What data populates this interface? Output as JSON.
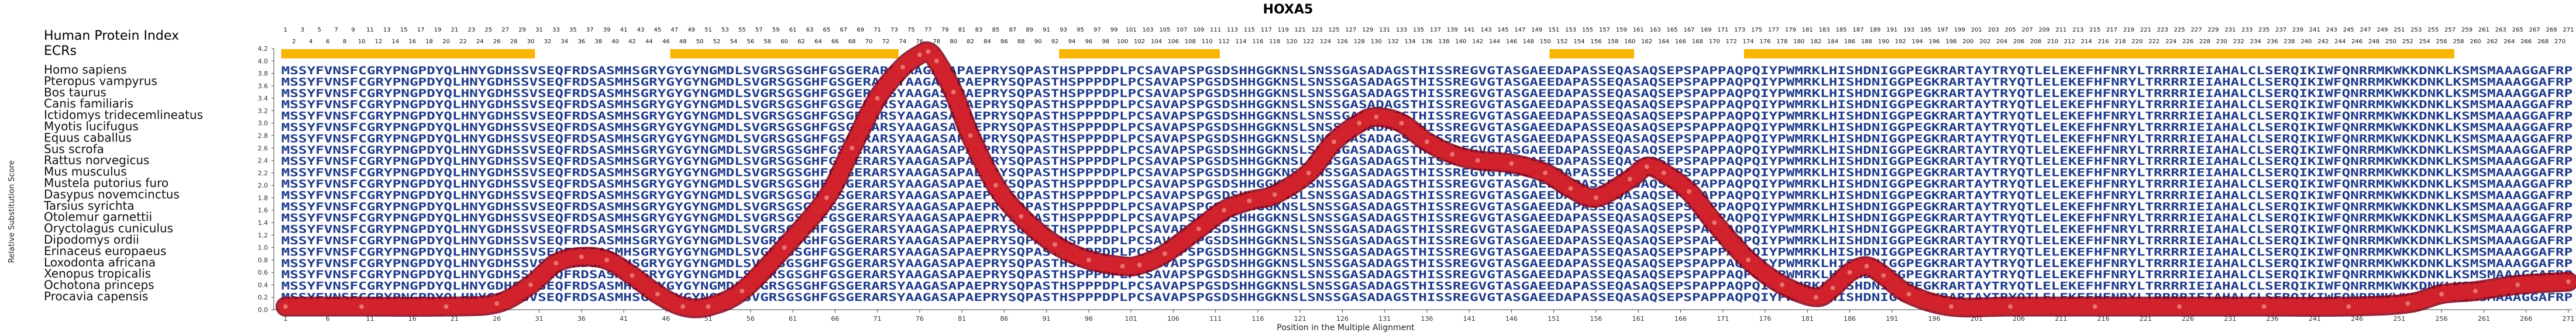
{
  "title": "HOXA5",
  "xlabel": "Position in the Multiple Alignment",
  "ylabel": "Relative Substitution Score",
  "header_labels": {
    "human_protein_index": "Human Protein Index",
    "ecrs": "ECRs"
  },
  "colors": {
    "ecr_bar": "#f7b500",
    "residue_text": "#1f3b8c",
    "curve_fill": "#d8242c",
    "curve_edge": "#8a0018",
    "axis": "#444444"
  },
  "species": [
    "Homo sapiens",
    "Pteropus vampyrus",
    "Bos taurus",
    "Canis familiaris",
    "Ictidomys tridecemlineatus",
    "Myotis lucifugus",
    "Equus caballus",
    "Sus scrofa",
    "Rattus norvegicus",
    "Mus musculus",
    "Mustela putorius furo",
    "Dasypus novemcinctus",
    "Tarsius syrichta",
    "Otolemur garnettii",
    "Oryctolagus cuniculus",
    "Dipodomys ordii",
    "Erinaceus europaeus",
    "Loxodonta africana",
    "Xenopus tropicalis",
    "Ochotona princeps",
    "Procavia capensis"
  ],
  "alignment": [
    "MSSYFVNSFCGRYPNGPDYQLHNYGDHSSVSEQFRDSASMHSGRYGYGYNGMDLSVGRSGSGHFGSGERARSYAAGASAPAEPRYSQPASTHSPPPDPLPCSAVAPSPGSDSHHGGKNSLSNSSGASADAGSTHISSREGVGTASGAEEDAPASSEQASAQSEPSPAPPAQPQIYPWMRKLHISHDNIGGPEGKRARTAYTRYQTLELEKEFHFNRYLTRRRRIEIAHALCLSERQIKIWFQNRRMKWKKDNKLKSMSMAAAGGAFRP",
    "MSSYFVNSFCGRYPNGPDYQLHNYGDHSSVSEQFRDSASMHSGRYGYGYNGMDLSVGRSGSGHFGSGERARSYAAGASAPAEPRYSQPASTHSPPPDPLPCSAVAPSPGSDSHHGGKNSLSNSSGASADAGSTHISSREGVGTASGAEEDAPASSEQASAQSEPSPAPPAQPQIYPWMRKLHISHDNIGGPEGKRARTAYTRYQTLELEKEFHFNRYLTRRRRIEIAHALCLSERQIKIWFQNRRMKWKKDNKLKSMSMAAAGGAFRP",
    "MSSYFVNSFCGRYPNGPDYQLHNYGDHSSVSEQFRDSASMHSGRYGYGYNGMDLSVGRSGSGHFGSGERARSYAAGASAPAEPRYSQPASTHSPPPDPLPCSAVAPSPGSDSHHGGKNSLSNSSGASADAGSTHISSREGVGTASGAEEDAPASSEQASAQSEPSPAPPAQPQIYPWMRKLHISHDNIGGPEGKRARTAYTRYQTLELEKEFHFNRYLTRRRRIEIAHALCLSERQIKIWFQNRRMKWKKDNKLKSMSMAAAGGAFRP",
    "MSSYFVNSFCGRYPNGPDYQLHNYGDHSSVSEQFRDSASMHSGRYGYGYNGMDLSVGRSGSGHFGSGERARSYAAGASAPAEPRYSQPASTHSPPPDPLPCSAVAPSPGSDSHHGGKNSLSNSSGASADAGSTHISSREGVGTASGAEEDAPASSEQASAQSEPSPAPPAQPQIYPWMRKLHISHDNIGGPEGKRARTAYTRYQTLELEKEFHFNRYLTRRRRIEIAHALCLSERQIKIWFQNRRMKWKKDNKLKSMSMAAAGGAFRP",
    "MSSYFVNSFCGRYPNGPDYQLHNYGDHSSVSEQFRDSASMHSGRYGYGYNGMDLSVGRSGSGHFGSGERARSYAAGASAPAEPRYSQPASTHSPPPDPLPCSAVAPSPGSDSHHGGKNSLSNSSGASADAGSTHISSREGVGTASGAEEDAPASSEQASAQSEPSPAPPAQPQIYPWMRKLHISHDNIGGPEGKRARTAYTRYQTLELEKEFHFNRYLTRRRRIEIAHALCLSERQIKIWFQNRRMKWKKDNKLKSMSMAAAGGAFRP",
    "MSSYFVNSFCGRYPNGPDYQLHNYGDHSSVSEQFRDSASMHSGRYGYGYNGMDLSVGRSGSGHFGSGERARSYAAGASAPAEPRYSQPASTHSPPPDPLPCSAVAPSPGSDSHHGGKNSLSNSSGASADAGSTHISSREGVGTASGAEEDAPASSEQASAQSEPSPAPPAQPQIYPWMRKLHISHDNIGGPEGKRARTAYTRYQTLELEKEFHFNRYLTRRRRIEIAHALCLSERQIKIWFQNRRMKWKKDNKLKSMSMAAAGGAFRP",
    "MSSYFVNSFCGRYPNGPDYQLHNYGDHSSVSEQFRDSASMHSGRYGYGYNGMDLSVGRSGSGHFGSGERARSYAAGASAPAEPRYSQPASTHSPPPDPLPCSAVAPSPGSDSHHGGKNSLSNSSGASADAGSTHISSREGVGTASGAEEDAPASSEQASAQSEPSPAPPAQPQIYPWMRKLHISHDNIGGPEGKRARTAYTRYQTLELEKEFHFNRYLTRRRRIEIAHALCLSERQIKIWFQNRRMKWKKDNKLKSMSMAAAGGAFRP",
    "MSSYFVNSFCGRYPNGPDYQLHNYGDHSSVSEQFRDSASMHSGRYGYGYNGMDLSVGRSGSGHFGSGERARSYAAGASAPAEPRYSQPASTHSPPPDPLPCSAVAPSPGSDSHHGGKNSLSNSSGASADAGSTHISSREGVGTASGAEEDAPASSEQASAQSEPSPAPPAQPQIYPWMRKLHISHDNIGGPEGKRARTAYTRYQTLELEKEFHFNRYLTRRRRIEIAHALCLSERQIKIWFQNRRMKWKKDNKLKSMSMAAAGGAFRP",
    "MSSYFVNSFCGRYPNGPDYQLHNYGDHSSVSEQFRDSASMHSGRYGYGYNGMDLSVGRSGSGHFGSGERARSYAAGASAPAEPRYSQPASTHSPPPDPLPCSAVAPSPGSDSHHGGKNSLSNSSGASADAGSTHISSREGVGTASGAEEDAPASSEQASAQSEPSPAPPAQPQIYPWMRKLHISHDNIGGPEGKRARTAYTRYQTLELEKEFHFNRYLTRRRRIEIAHALCLSERQIKIWFQNRRMKWKKDNKLKSMSMAAAGGAFRP",
    "MSSYFVNSFCGRYPNGPDYQLHNYGDHSSVSEQFRDSASMHSGRYGYGYNGMDLSVGRSGSGHFGSGERARSYAAGASAPAEPRYSQPASTHSPPPDPLPCSAVAPSPGSDSHHGGKNSLSNSSGASADAGSTHISSREGVGTASGAEEDAPASSEQASAQSEPSPAPPAQPQIYPWMRKLHISHDNIGGPEGKRARTAYTRYQTLELEKEFHFNRYLTRRRRIEIAHALCLSERQIKIWFQNRRMKWKKDNKLKSMSMAAAGGAFRP",
    "MSSYFVNSFCGRYPNGPDYQLHNYGDHSSVSEQFRDSASMHSGRYGYGYNGMDLSVGRSGSGHFGSGERARSYAAGASAPAEPRYSQPASTHSPPPDPLPCSAVAPSPGSDSHHGGKNSLSNSSGASADAGSTHISSREGVGTASGAEEDAPASSEQASAQSEPSPAPPAQPQIYPWMRKLHISHDNIGGPEGKRARTAYTRYQTLELEKEFHFNRYLTRRRRIEIAHALCLSERQIKIWFQNRRMKWKKDNKLKSMSMAAAGGAFRP",
    "MSSYFVNSFCGRYPNGPDYQLHNYGDHSSVSEQFRDSASMHSGRYGYGYNGMDLSVGRSGSGHFGSGERARSYAAGASAPAEPRYSQPASTHSPPPDPLPCSAVAPSPGSDSHHGGKNSLSNSSGASADAGSTHISSREGVGTASGAEEDAPASSEQASAQSEPSPAPPAQPQIYPWMRKLHISHDNIGGPEGKRARTAYTRYQTLELEKEFHFNRYLTRRRRIEIAHALCLSERQIKIWFQNRRMKWKKDNKLKSMSMAAAGGAFRP",
    "MSSYFVNSFCGRYPNGPDYQLHNYGDHSSVSEQFRDSASMHSGRYGYGYNGMDLSVGRSGSGHFGSGERARSYAAGASAPAEPRYSQPASTHSPPPDPLPCSAVAPSPGSDSHHGGKNSLSNSSGASADAGSTHISSREGVGTASGAEEDAPASSEQASAQSEPSPAPPAQPQIYPWMRKLHISHDNIGGPEGKRARTAYTRYQTLELEKEFHFNRYLTRRRRIEIAHALCLSERQIKIWFQNRRMKWKKDNKLKSMSMAAAGGAFRP",
    "MSSYFVNSFCGRYPNGPDYQLHNYGDHSSVSEQFRDSASMHSGRYGYGYNGMDLSVGRSGSGHFGSGERARSYAAGASAPAEPRYSQPASTHSPPPDPLPCSAVAPSPGSDSHHGGKNSLSNSSGASADAGSTHISSREGVGTASGAEEDAPASSEQASAQSEPSPAPPAQPQIYPWMRKLHISHDNIGGPEGKRARTAYTRYQTLELEKEFHFNRYLTRRRRIEIAHALCLSERQIKIWFQNRRMKWKKDNKLKSMSMAAAGGAFRP",
    "MSSYFVNSFCGRYPNGPDYQLHNYGDHSSVSEQFRDSASMHSGRYGYGYNGMDLSVGRSGSGHFGSGERARSYAAGASAPAEPRYSQPASTHSPPPDPLPCSAVAPSPGSDSHHGGKNSLSNSSGASADAGSTHISSREGVGTASGAEEDAPASSEQASAQSEPSPAPPAQPQIYPWMRKLHISHDNIGGPEGKRARTAYTRYQTLELEKEFHFNRYLTRRRRIEIAHALCLSERQIKIWFQNRRMKWKKDNKLKSMSMAAAGGAFRP",
    "MSSYFVNSFCGRYPNGPDYQLHNYGDHSSVSEQFRDSASMHSGRYGYGYNGMDLSVGRSGSGHFGSGERARSYAAGASAPAEPRYSQPASTHSPPPDPLPCSAVAPSPGSDSHHGGKNSLSNSSGASADAGSTHISSREGVGTASGAEEDAPASSEQASAQSEPSPAPPAQPQIYPWMRKLHISHDNIGGPEGKRARTAYTRYQTLELEKEFHFNRYLTRRRRIEIAHALCLSERQIKIWFQNRRMKWKKDNKLKSMSMAAAGGAFRP",
    "MSSYFVNSFCGRYPNGPDYQLHNYGDHSSVSEQFRDSASMHSGRYGYGYNGMDLSVGRSGSGHFGSGERARSYAAGASAPAEPRYSQPASTHSPPPDPLPCSAVAPSPGSDSHHGGKNSLSNSSGASADAGSTHISSREGVGTASGAEEDAPASSEQASAQSEPSPAPPAQPQIYPWMRKLHISHDNIGGPEGKRARTAYTRYQTLELEKEFHFNRYLTRRRRIEIAHALCLSERQIKIWFQNRRMKWKKDNKLKSMSMAAAGGAFRP",
    "MSSYFVNSFCGRYPNGPDYQLHNYGDHSSVSEQFRDSASMHSGRYGYGYNGMDLSVGRSGSGHFGSGERARSYAAGASAPAEPRYSQPASTHSPPPDPLPCSAVAPSPGSDSHHGGKNSLSNSSGASADAGSTHISSREGVGTASGAEEDAPASSEQASAQSEPSPAPPAQPQIYPWMRKLHISHDNIGGPEGKRARTAYTRYQTLELEKEFHFNRYLTRRRRIEIAHALCLSERQIKIWFQNRRMKWKKDNKLKSMSMAAAGGAFRP",
    "MSSYFVNSFCGRYPNGPDYQLHNYGDHSSVSEQFRDSASMHSGRYGYGYNGMDLSVGRSGSGHFGSGERARSYAAGASAPAEPRYSQPASTHSPPPDPLPCSAVAPSPGSDSHHGGKNSLSNSSGASADAGSTHISSREGVGTASGAEEDAPASSEQASAQSEPSPAPPAQPQIYPWMRKLHISHDNIGGPEGKRARTAYTRYQTLELEKEFHFNRYLTRRRRIEIAHALCLSERQIKIWFQNRRMKWKKDNKLKSMSMAAAGGAFRP",
    "MSSYFVNSFCGRYPNGPDYQLHNYGDHSSVSEQFRDSASMHSGRYGYGYNGMDLSVGRSGSGHFGSGERARSYAAGASAPAEPRYSQPASTHSPPPDPLPCSAVAPSPGSDSHHGGKNSLSNSSGASADAGSTHISSREGVGTASGAEEDAPASSEQASAQSEPSPAPPAQPQIYPWMRKLHISHDNIGGPEGKRARTAYTRYQTLELEKEFHFNRYLTRRRRIEIAHALCLSERQIKIWFQNRRMKWKKDNKLKSMSMAAAGGAFRP",
    "MSSYFVNSFCGRYPNGPDYQLHNYGDHSSVSEQFRDSASMHSGRYGYGYNGMDLSVGRSGSGHFGSGERARSYAAGASAPAEPRYSQPASTHSPPPDPLPCSAVAPSPGSDSHHGGKNSLSNSSGASADAGSTHISSREGVGTASGAEEDAPASSEQASAQSEPSPAPPAQPQIYPWMRKLHISHDNIGGPEGKRARTAYTRYQTLELEKEFHFNRYLTRRRRIEIAHALCLSERQIKIWFQNRRMKWKKDNKLKSMSMAAAGGAFRP"
  ],
  "ecr_regions": [
    [
      1,
      30
    ],
    [
      47,
      73
    ],
    [
      93,
      111
    ],
    [
      151,
      160
    ],
    [
      174,
      257
    ]
  ],
  "chart_data": {
    "type": "line",
    "title": "HOXA5",
    "xlabel": "Position in the Multiple Alignment",
    "ylabel": "Relative Substitution Score",
    "xlim": [
      1,
      271
    ],
    "ylim": [
      0,
      4.2
    ],
    "x_ticks": [
      1,
      6,
      11,
      16,
      21,
      26,
      31,
      36,
      41,
      46,
      51,
      56,
      61,
      66,
      71,
      76,
      81,
      86,
      91,
      96,
      101,
      106,
      111,
      116,
      121,
      126,
      131,
      136,
      141,
      146,
      151,
      156,
      161,
      166,
      171,
      176,
      181,
      186,
      191,
      196,
      201,
      206,
      211,
      216,
      221,
      226,
      231,
      236,
      241,
      246,
      251,
      256,
      261,
      266,
      271
    ],
    "y_ticks": [
      "0.0",
      "0.2",
      "0.4",
      "0.6",
      "0.8",
      "1.0",
      "1.2",
      "1.4",
      "1.6",
      "1.8",
      "2.0",
      "2.2",
      "2.4",
      "2.6",
      "2.8",
      "3.0",
      "3.2",
      "3.4",
      "3.6",
      "3.8",
      "4.0",
      "4.2"
    ],
    "series": [
      {
        "x": [
          1,
          10,
          20,
          26,
          30,
          33,
          36,
          39,
          42,
          45,
          48,
          51,
          55,
          60,
          65,
          68,
          71,
          74,
          76,
          77,
          78,
          80,
          82,
          85,
          88,
          92,
          96,
          100,
          102,
          105,
          109,
          112,
          115,
          118,
          122,
          125,
          128,
          130,
          133,
          136,
          139,
          142,
          146,
          150,
          153,
          156,
          160,
          162,
          164,
          167,
          170,
          174,
          178,
          182,
          184,
          186,
          188,
          190,
          193,
          198,
          205,
          215,
          225,
          235,
          245,
          252,
          256,
          260,
          265,
          271
        ],
        "y": [
          0.05,
          0.05,
          0.05,
          0.1,
          0.4,
          0.75,
          0.85,
          0.8,
          0.55,
          0.25,
          0.05,
          0.05,
          0.3,
          1.0,
          1.8,
          2.6,
          3.4,
          3.9,
          4.1,
          4.15,
          4.0,
          3.5,
          2.8,
          2.0,
          1.5,
          1.05,
          0.8,
          0.7,
          0.72,
          0.9,
          1.3,
          1.6,
          1.75,
          1.85,
          2.2,
          2.7,
          3.0,
          3.1,
          3.0,
          2.7,
          2.5,
          2.4,
          2.35,
          2.2,
          1.95,
          1.8,
          2.1,
          2.3,
          2.2,
          1.9,
          1.4,
          0.8,
          0.4,
          0.2,
          0.35,
          0.6,
          0.7,
          0.55,
          0.25,
          0.05,
          0.05,
          0.05,
          0.05,
          0.05,
          0.05,
          0.1,
          0.25,
          0.3,
          0.4,
          0.45
        ]
      }
    ]
  }
}
